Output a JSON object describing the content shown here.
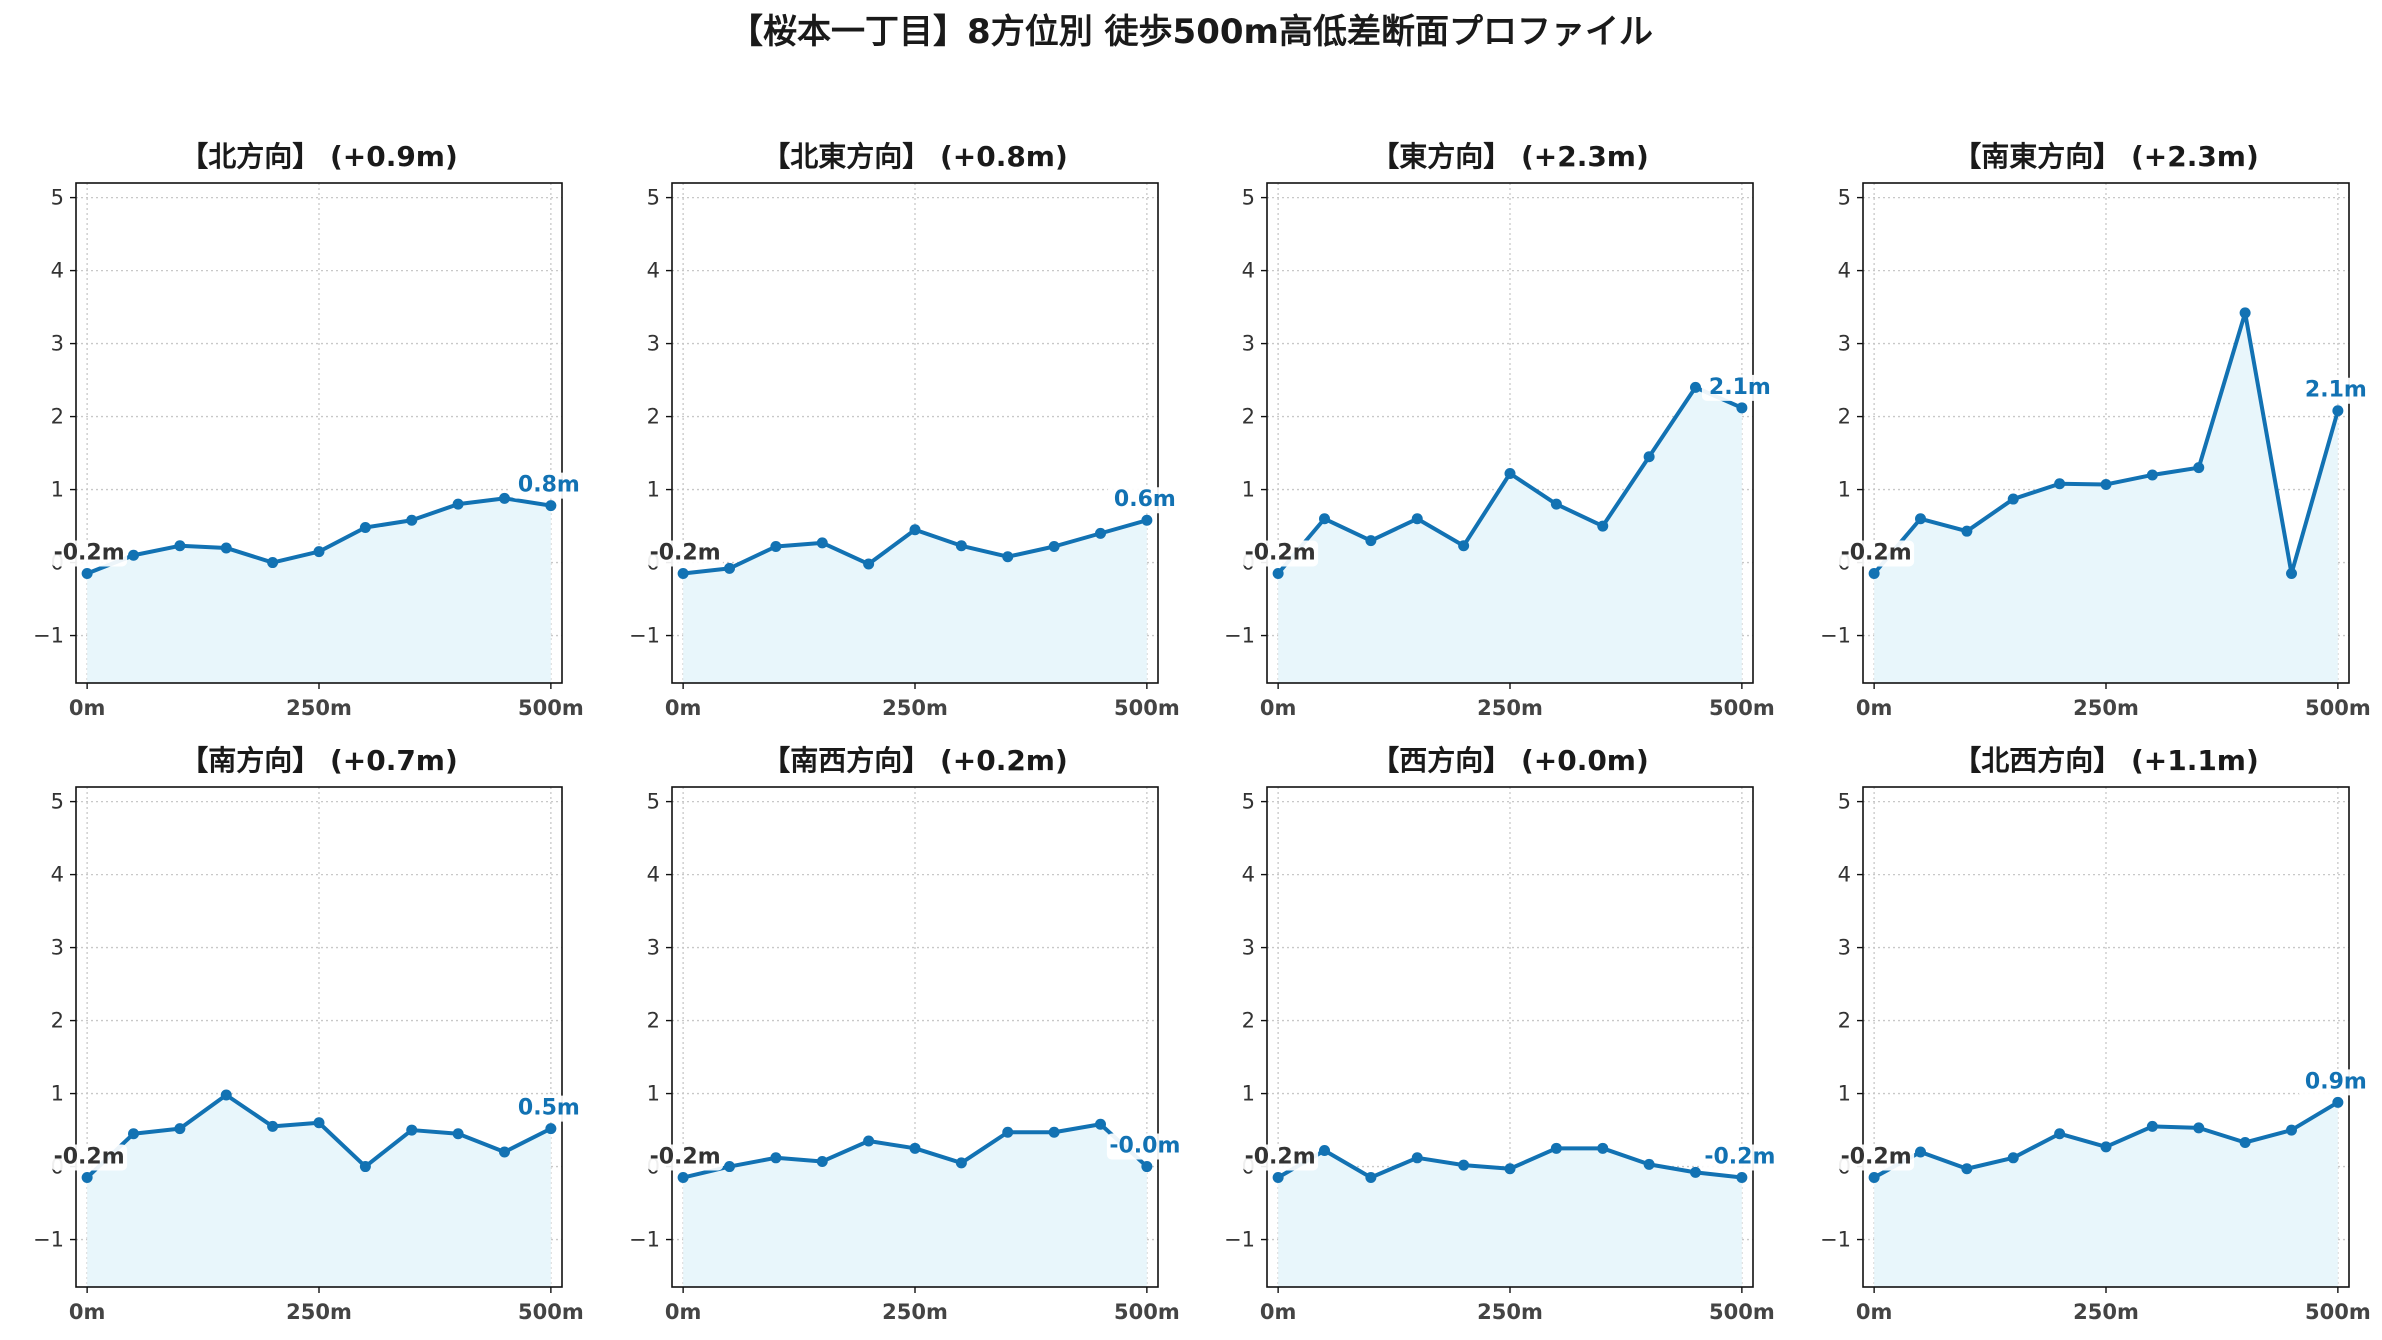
{
  "figure_title": "【桜本一丁目】8方位別 徒歩500m高低差断面プロファイル",
  "colors": {
    "line": "#1272b3",
    "fill": "#e8f6fb",
    "start_label": "#333333",
    "end_label": "#1272b3",
    "grid": "#c8c8c8"
  },
  "chart_data": [
    {
      "type": "area",
      "title": "【北方向】 (+0.9m)",
      "x": [
        0,
        50,
        100,
        150,
        200,
        250,
        300,
        350,
        400,
        450,
        500
      ],
      "y": [
        -0.15,
        0.1,
        0.23,
        0.2,
        0.0,
        0.15,
        0.48,
        0.58,
        0.8,
        0.88,
        0.78
      ],
      "xticks": [
        "0m",
        "250m",
        "500m"
      ],
      "yticks": [
        -1,
        0,
        1,
        2,
        3,
        4,
        5
      ],
      "ylim": [
        -1.65,
        5.2
      ],
      "start_label": "-0.2m",
      "end_label": "0.8m",
      "grid": true
    },
    {
      "type": "area",
      "title": "【北東方向】 (+0.8m)",
      "x": [
        0,
        50,
        100,
        150,
        200,
        250,
        300,
        350,
        400,
        450,
        500
      ],
      "y": [
        -0.15,
        -0.08,
        0.22,
        0.27,
        -0.02,
        0.45,
        0.23,
        0.08,
        0.22,
        0.4,
        0.58
      ],
      "xticks": [
        "0m",
        "250m",
        "500m"
      ],
      "yticks": [
        -1,
        0,
        1,
        2,
        3,
        4,
        5
      ],
      "ylim": [
        -1.65,
        5.2
      ],
      "start_label": "-0.2m",
      "end_label": "0.6m",
      "grid": true
    },
    {
      "type": "area",
      "title": "【東方向】 (+2.3m)",
      "x": [
        0,
        50,
        100,
        150,
        200,
        250,
        300,
        350,
        400,
        450,
        500
      ],
      "y": [
        -0.15,
        0.6,
        0.3,
        0.6,
        0.23,
        1.22,
        0.8,
        0.5,
        1.45,
        2.4,
        2.12
      ],
      "xticks": [
        "0m",
        "250m",
        "500m"
      ],
      "yticks": [
        -1,
        0,
        1,
        2,
        3,
        4,
        5
      ],
      "ylim": [
        -1.65,
        5.2
      ],
      "start_label": "-0.2m",
      "end_label": "2.1m",
      "grid": true
    },
    {
      "type": "area",
      "title": "【南東方向】 (+2.3m)",
      "x": [
        0,
        50,
        100,
        150,
        200,
        250,
        300,
        350,
        400,
        450,
        500
      ],
      "y": [
        -0.15,
        0.6,
        0.43,
        0.87,
        1.08,
        1.07,
        1.2,
        1.3,
        3.42,
        -0.15,
        2.08
      ],
      "xticks": [
        "0m",
        "250m",
        "500m"
      ],
      "yticks": [
        -1,
        0,
        1,
        2,
        3,
        4,
        5
      ],
      "ylim": [
        -1.65,
        5.2
      ],
      "start_label": "-0.2m",
      "end_label": "2.1m",
      "grid": true
    },
    {
      "type": "area",
      "title": "【南方向】 (+0.7m)",
      "x": [
        0,
        50,
        100,
        150,
        200,
        250,
        300,
        350,
        400,
        450,
        500
      ],
      "y": [
        -0.15,
        0.45,
        0.52,
        0.98,
        0.55,
        0.6,
        0.0,
        0.5,
        0.45,
        0.2,
        0.52
      ],
      "xticks": [
        "0m",
        "250m",
        "500m"
      ],
      "yticks": [
        -1,
        0,
        1,
        2,
        3,
        4,
        5
      ],
      "ylim": [
        -1.65,
        5.2
      ],
      "start_label": "-0.2m",
      "end_label": "0.5m",
      "grid": true
    },
    {
      "type": "area",
      "title": "【南西方向】 (+0.2m)",
      "x": [
        0,
        50,
        100,
        150,
        200,
        250,
        300,
        350,
        400,
        450,
        500
      ],
      "y": [
        -0.15,
        0.0,
        0.12,
        0.07,
        0.35,
        0.25,
        0.05,
        0.47,
        0.47,
        0.58,
        0.0
      ],
      "xticks": [
        "0m",
        "250m",
        "500m"
      ],
      "yticks": [
        -1,
        0,
        1,
        2,
        3,
        4,
        5
      ],
      "ylim": [
        -1.65,
        5.2
      ],
      "start_label": "-0.2m",
      "end_label": "-0.0m",
      "grid": true
    },
    {
      "type": "area",
      "title": "【西方向】 (+0.0m)",
      "x": [
        0,
        50,
        100,
        150,
        200,
        250,
        300,
        350,
        400,
        450,
        500
      ],
      "y": [
        -0.15,
        0.22,
        -0.15,
        0.12,
        0.02,
        -0.03,
        0.25,
        0.25,
        0.03,
        -0.08,
        -0.15
      ],
      "xticks": [
        "0m",
        "250m",
        "500m"
      ],
      "yticks": [
        -1,
        0,
        1,
        2,
        3,
        4,
        5
      ],
      "ylim": [
        -1.65,
        5.2
      ],
      "start_label": "-0.2m",
      "end_label": "-0.2m",
      "grid": true
    },
    {
      "type": "area",
      "title": "【北西方向】 (+1.1m)",
      "x": [
        0,
        50,
        100,
        150,
        200,
        250,
        300,
        350,
        400,
        450,
        500
      ],
      "y": [
        -0.15,
        0.2,
        -0.03,
        0.12,
        0.45,
        0.27,
        0.55,
        0.53,
        0.33,
        0.5,
        0.88
      ],
      "xticks": [
        "0m",
        "250m",
        "500m"
      ],
      "yticks": [
        -1,
        0,
        1,
        2,
        3,
        4,
        5
      ],
      "ylim": [
        -1.65,
        5.2
      ],
      "start_label": "-0.2m",
      "end_label": "0.9m",
      "grid": true
    }
  ]
}
